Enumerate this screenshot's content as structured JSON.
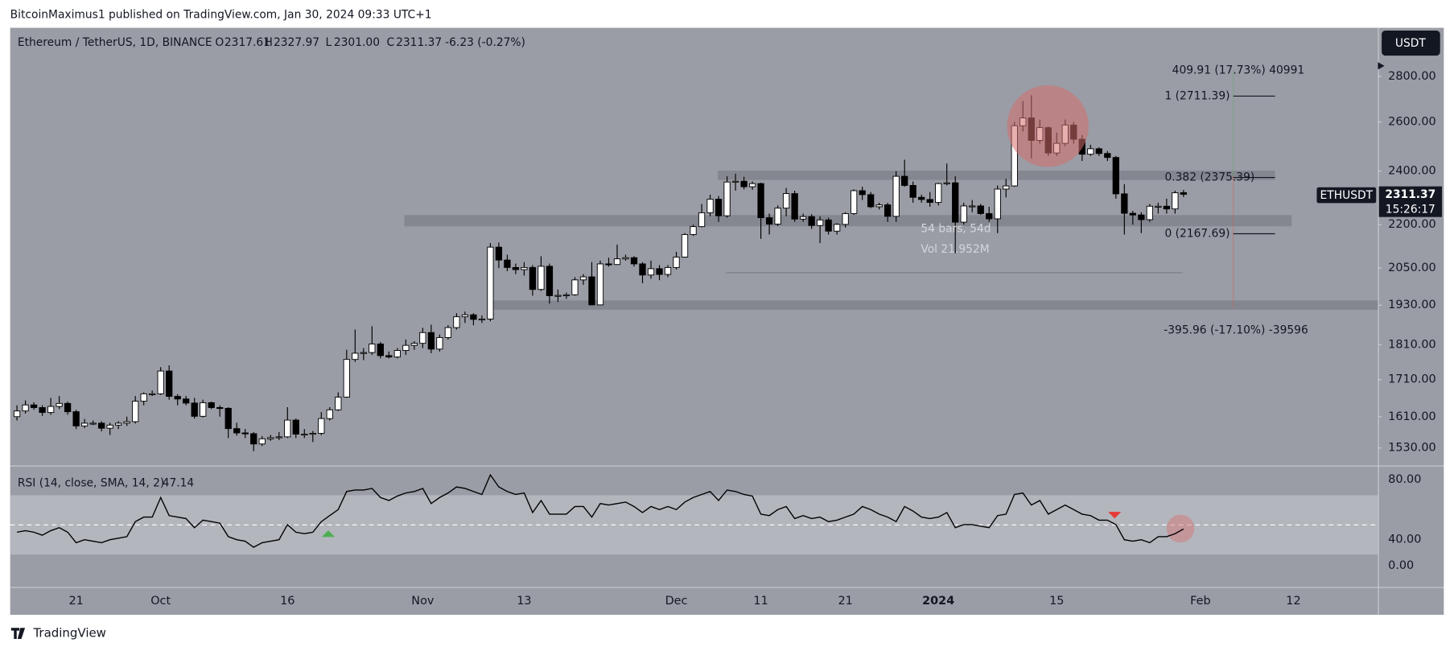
{
  "ui": {
    "attribution": "BitcoinMaximus1 published on TradingView.com, Jan 30, 2024 09:33 UTC+1",
    "currency_button": "USDT",
    "symbol_tag": "ETHUSDT",
    "countdown": "15:26:17",
    "footer": "TradingView"
  },
  "legend": {
    "symbol": "Ethereum / TetherUS, 1D, BINANCE",
    "items": [
      {
        "key": "O",
        "value": "2317.61"
      },
      {
        "key": "H",
        "value": "2327.97"
      },
      {
        "key": "L",
        "value": "2301.00"
      },
      {
        "key": "C",
        "value": "2311.37"
      }
    ],
    "change": "-6.23 (-0.27%)"
  },
  "annotations": {
    "fib": [
      {
        "value": 2711.39,
        "label": "1 (2711.39)"
      },
      {
        "value": 2375.39,
        "label": "0.382 (2375.39)"
      },
      {
        "value": 2167.69,
        "label": "0 (2167.69)"
      }
    ],
    "measure_up": "409.91 (17.73%) 40991",
    "measure_down": "-395.96 (-17.10%) -39596",
    "range_bars": "54 bars, 54d",
    "range_vol": "Vol 21.952M"
  },
  "chart_data": [
    {
      "type": "candlestick",
      "log": true,
      "up_color": "#ffffff",
      "down_color": "#000000",
      "xlim": [
        -0.8,
        161
      ],
      "ylim": [
        1487,
        3030
      ],
      "xticks": [
        {
          "value": 7,
          "label": "21"
        },
        {
          "value": 17,
          "label": "Oct"
        },
        {
          "value": 32,
          "label": "16"
        },
        {
          "value": 48,
          "label": "Nov"
        },
        {
          "value": 60,
          "label": "13"
        },
        {
          "value": 78,
          "label": "Dec"
        },
        {
          "value": 88,
          "label": "11"
        },
        {
          "value": 98,
          "label": "21"
        },
        {
          "value": 109,
          "label": "2024"
        },
        {
          "value": 123,
          "label": "15"
        },
        {
          "value": 140,
          "label": "Feb"
        },
        {
          "value": 151,
          "label": "12"
        }
      ],
      "yticks": [
        {
          "value": 2800,
          "label": "2800.00"
        },
        {
          "value": 2600,
          "label": "2600.00"
        },
        {
          "value": 2400,
          "label": "2400.00"
        },
        {
          "value": 2200,
          "label": "2200.00"
        },
        {
          "value": 2050,
          "label": "2050.00"
        },
        {
          "value": 1930,
          "label": "1930.00"
        },
        {
          "value": 1810,
          "label": "1810.00"
        },
        {
          "value": 1710,
          "label": "1710.00"
        },
        {
          "value": 1610,
          "label": "1610.00"
        },
        {
          "value": 1530,
          "label": "1530.00"
        }
      ],
      "open": [
        1610,
        1625,
        1641,
        1634,
        1621,
        1637,
        1645,
        1623,
        1586,
        1593,
        1593,
        1580,
        1588,
        1593,
        1597,
        1651,
        1671,
        1671,
        1734,
        1664,
        1657,
        1646,
        1611,
        1647,
        1634,
        1632,
        1579,
        1568,
        1566,
        1540,
        1553,
        1556,
        1558,
        1601,
        1565,
        1565,
        1567,
        1605,
        1628,
        1662,
        1767,
        1785,
        1787,
        1812,
        1778,
        1774,
        1793,
        1808,
        1814,
        1846,
        1797,
        1831,
        1861,
        1894,
        1900,
        1886,
        1887,
        2121,
        2077,
        2052,
        2045,
        2052,
        1980,
        2056,
        1960,
        1961,
        1963,
        2011,
        2021,
        1931,
        2064,
        2062,
        2081,
        2085,
        2064,
        2027,
        2048,
        2029,
        2052,
        2087,
        2165,
        2193,
        2243,
        2293,
        2232,
        2358,
        2361,
        2340,
        2352,
        2225,
        2202,
        2260,
        2314,
        2220,
        2229,
        2197,
        2217,
        2177,
        2201,
        2240,
        2325,
        2310,
        2265,
        2272,
        2230,
        2380,
        2345,
        2300,
        2292,
        2281,
        2352,
        2355,
        2209,
        2268,
        2268,
        2240,
        2221,
        2331,
        2343,
        2584,
        2617,
        2523,
        2576,
        2472,
        2511,
        2587,
        2528,
        2467,
        2489,
        2470,
        2454,
        2313,
        2241,
        2235,
        2218,
        2267,
        2267,
        2257,
        2317.61
      ],
      "high": [
        1640,
        1653,
        1648,
        1640,
        1660,
        1665,
        1650,
        1628,
        1604,
        1600,
        1598,
        1594,
        1598,
        1610,
        1665,
        1675,
        1680,
        1745,
        1750,
        1670,
        1665,
        1660,
        1655,
        1650,
        1640,
        1635,
        1594,
        1578,
        1570,
        1560,
        1563,
        1570,
        1635,
        1605,
        1578,
        1573,
        1622,
        1635,
        1675,
        1795,
        1855,
        1800,
        1865,
        1818,
        1790,
        1800,
        1825,
        1820,
        1860,
        1870,
        1840,
        1868,
        1905,
        1910,
        1905,
        1898,
        2135,
        2137,
        2095,
        2065,
        2070,
        2060,
        2090,
        2065,
        1980,
        1970,
        2020,
        2030,
        2070,
        2075,
        2085,
        2130,
        2095,
        2090,
        2070,
        2075,
        2060,
        2060,
        2105,
        2170,
        2200,
        2275,
        2310,
        2305,
        2380,
        2390,
        2378,
        2360,
        2355,
        2240,
        2270,
        2335,
        2325,
        2240,
        2238,
        2230,
        2225,
        2205,
        2245,
        2330,
        2340,
        2320,
        2280,
        2280,
        2400,
        2445,
        2360,
        2310,
        2320,
        2355,
        2430,
        2380,
        2280,
        2290,
        2275,
        2265,
        2345,
        2370,
        2600,
        2690,
        2715,
        2610,
        2580,
        2555,
        2610,
        2600,
        2545,
        2505,
        2495,
        2480,
        2460,
        2350,
        2250,
        2245,
        2275,
        2280,
        2295,
        2325,
        2327.97
      ],
      "low": [
        1600,
        1618,
        1628,
        1612,
        1615,
        1630,
        1615,
        1578,
        1580,
        1588,
        1572,
        1563,
        1578,
        1586,
        1592,
        1640,
        1665,
        1668,
        1655,
        1640,
        1640,
        1605,
        1608,
        1630,
        1610,
        1555,
        1561,
        1555,
        1522,
        1535,
        1548,
        1550,
        1555,
        1555,
        1555,
        1545,
        1562,
        1600,
        1625,
        1660,
        1760,
        1765,
        1780,
        1770,
        1770,
        1770,
        1780,
        1795,
        1800,
        1785,
        1790,
        1825,
        1855,
        1875,
        1868,
        1875,
        1880,
        2050,
        2040,
        2030,
        2025,
        1960,
        1975,
        1935,
        1940,
        1950,
        1960,
        1995,
        1930,
        1930,
        2055,
        2060,
        2075,
        2055,
        2000,
        2015,
        2010,
        2020,
        2045,
        2085,
        2160,
        2190,
        2230,
        2210,
        2225,
        2325,
        2330,
        2328,
        2150,
        2165,
        2195,
        2230,
        2210,
        2210,
        2185,
        2135,
        2165,
        2165,
        2190,
        2235,
        2290,
        2260,
        2255,
        2210,
        2210,
        2340,
        2280,
        2280,
        2265,
        2270,
        2345,
        2100,
        2200,
        2245,
        2235,
        2210,
        2170,
        2300,
        2340,
        2560,
        2450,
        2510,
        2460,
        2460,
        2500,
        2510,
        2440,
        2460,
        2460,
        2440,
        2295,
        2165,
        2200,
        2170,
        2210,
        2240,
        2240,
        2240,
        2301.0
      ],
      "close": [
        1625,
        1641,
        1634,
        1621,
        1637,
        1645,
        1623,
        1586,
        1593,
        1593,
        1580,
        1588,
        1593,
        1597,
        1651,
        1671,
        1671,
        1734,
        1664,
        1657,
        1646,
        1611,
        1647,
        1634,
        1632,
        1579,
        1568,
        1566,
        1540,
        1553,
        1556,
        1558,
        1601,
        1565,
        1565,
        1567,
        1605,
        1628,
        1662,
        1767,
        1785,
        1787,
        1812,
        1778,
        1774,
        1793,
        1808,
        1814,
        1846,
        1797,
        1831,
        1861,
        1894,
        1900,
        1886,
        1887,
        2121,
        2077,
        2052,
        2045,
        2052,
        1980,
        2056,
        1960,
        1961,
        1963,
        2011,
        2021,
        1931,
        2064,
        2062,
        2081,
        2085,
        2064,
        2027,
        2048,
        2029,
        2052,
        2087,
        2165,
        2193,
        2243,
        2293,
        2232,
        2358,
        2361,
        2340,
        2352,
        2225,
        2202,
        2260,
        2314,
        2220,
        2229,
        2197,
        2217,
        2177,
        2201,
        2240,
        2325,
        2310,
        2265,
        2272,
        2230,
        2380,
        2345,
        2300,
        2292,
        2281,
        2352,
        2355,
        2209,
        2268,
        2268,
        2240,
        2221,
        2331,
        2343,
        2584,
        2617,
        2523,
        2576,
        2472,
        2511,
        2587,
        2528,
        2467,
        2489,
        2470,
        2454,
        2313,
        2241,
        2235,
        2218,
        2267,
        2267,
        2257,
        2317,
        2311.37
      ]
    },
    {
      "type": "line",
      "title": "RSI (14, close, SMA, 14, 2)",
      "color": "#000000",
      "xlim": [
        -0.8,
        161
      ],
      "ylim": [
        8.6,
        88.6
      ],
      "yticks": [
        {
          "value": 80,
          "label": "80.00"
        },
        {
          "value": 40,
          "label": "40.00"
        },
        {
          "value": 0,
          "label": "0.00"
        }
      ],
      "values": [
        45,
        46,
        45,
        43,
        46,
        48,
        45,
        38,
        40,
        39,
        38,
        40,
        41,
        42,
        52,
        55,
        55,
        68,
        56,
        55,
        54,
        48,
        53,
        52,
        51,
        42,
        40,
        39,
        35,
        38,
        39,
        40,
        50,
        45,
        44,
        45,
        52,
        56,
        60,
        72,
        73,
        73,
        74,
        68,
        66,
        69,
        71,
        72,
        74,
        64,
        68,
        71,
        75,
        74,
        72,
        70,
        83,
        75,
        72,
        70,
        71,
        58,
        66,
        57,
        57,
        57,
        62,
        62,
        55,
        64,
        63,
        64,
        65,
        62,
        58,
        62,
        60,
        62,
        60,
        65,
        68,
        70,
        72,
        66,
        73,
        72,
        70,
        69,
        57,
        56,
        60,
        62,
        54,
        56,
        54,
        55,
        52,
        53,
        55,
        57,
        62,
        60,
        57,
        55,
        52,
        62,
        59,
        55,
        54,
        55,
        58,
        48,
        50,
        50,
        49,
        48,
        56,
        57,
        70,
        71,
        63,
        66,
        57,
        60,
        63,
        60,
        57,
        56,
        53,
        53,
        50,
        40,
        39,
        40,
        38,
        42,
        42,
        44,
        47.14
      ]
    }
  ]
}
